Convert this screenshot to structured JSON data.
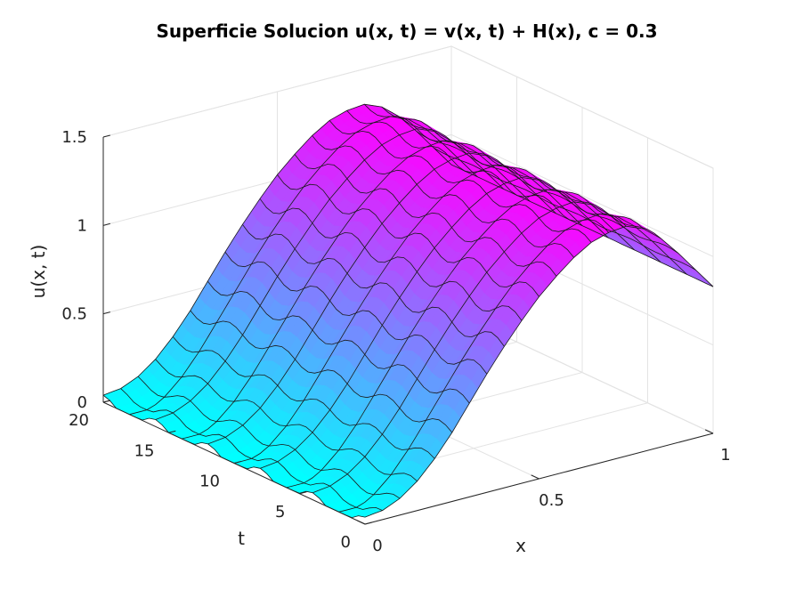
{
  "chart_data": {
    "type": "surface",
    "title": "Superficie Solucion u(x, t) = v(x, t) + H(x), c = 0.3",
    "xlabel": "x",
    "ylabel": "t",
    "zlabel": "u(x, t)",
    "xlim": [
      0,
      1
    ],
    "ylim": [
      0,
      20
    ],
    "zlim": [
      0,
      1.5
    ],
    "x_ticks": [
      "0",
      "0.5",
      "1"
    ],
    "y_ticks": [
      "0",
      "5",
      "10",
      "15",
      "20"
    ],
    "z_ticks": [
      "0",
      "0.5",
      "1",
      "1.5"
    ],
    "grid": true,
    "colormap": [
      "#00ffff",
      "#ff00ff"
    ],
    "c": 0.3,
    "x": [
      0,
      0.05,
      0.1,
      0.15,
      0.2,
      0.25,
      0.3,
      0.35,
      0.4,
      0.45,
      0.5,
      0.55,
      0.6,
      0.65,
      0.7,
      0.75,
      0.8,
      0.85,
      0.9,
      0.95,
      1
    ],
    "t": [
      0,
      2,
      4,
      6,
      8,
      10,
      12,
      14,
      16,
      18,
      20
    ],
    "u_at_t0": [
      0,
      0.02,
      0.07,
      0.15,
      0.26,
      0.39,
      0.53,
      0.67,
      0.8,
      0.92,
      1.03,
      1.12,
      1.2,
      1.26,
      1.29,
      1.3,
      1.26,
      1.18,
      1.07,
      0.95,
      0.83
    ]
  }
}
